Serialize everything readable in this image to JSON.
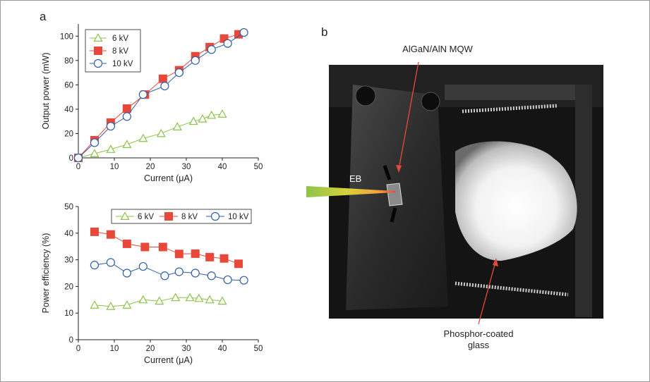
{
  "panel_a_label": "a",
  "panel_b_label": "b",
  "colors": {
    "kv6": "#8cc34a",
    "kv8": "#e8483a",
    "kv10": "#2f5ea6"
  },
  "chart_data": [
    {
      "type": "line",
      "xlabel": "Current (μA)",
      "ylabel": "Output power (mW)",
      "xlim": [
        0,
        50
      ],
      "ylim": [
        0,
        110
      ],
      "xticks": [
        "0",
        "10",
        "20",
        "30",
        "40",
        "50"
      ],
      "yticks": [
        "0",
        "20",
        "40",
        "60",
        "80",
        "100"
      ],
      "legend": "top-left, boxed",
      "series": [
        {
          "name": "6 kV",
          "marker": "triangle-open",
          "x": [
            0,
            4.5,
            9,
            13.5,
            18,
            23,
            27.5,
            32,
            34.5,
            37,
            40
          ],
          "y": [
            0,
            3.5,
            7,
            11,
            16,
            20,
            25.5,
            30,
            32,
            35,
            36
          ]
        },
        {
          "name": "8 kV",
          "marker": "square-filled",
          "x": [
            0,
            4.5,
            9,
            13.5,
            18.5,
            23.5,
            28,
            32.5,
            36.5,
            40.5,
            44.5
          ],
          "y": [
            0,
            14.5,
            29,
            40.5,
            52,
            65,
            72,
            83.5,
            91,
            98,
            101.5
          ]
        },
        {
          "name": "10 kV",
          "marker": "circle-open",
          "x": [
            0,
            4.5,
            9,
            13.5,
            18,
            24,
            28,
            32.5,
            37,
            41.5,
            46
          ],
          "y": [
            0,
            12.5,
            26,
            34,
            52,
            59,
            70,
            80,
            89,
            94,
            103
          ]
        }
      ]
    },
    {
      "type": "line",
      "xlabel": "Current (μA)",
      "ylabel": "Power efficiency (%)",
      "xlim": [
        0,
        50
      ],
      "ylim": [
        0,
        50
      ],
      "xticks": [
        "0",
        "10",
        "20",
        "30",
        "40",
        "50"
      ],
      "yticks": [
        "0",
        "10",
        "20",
        "30",
        "40",
        "50"
      ],
      "legend": "top, horizontal, boxed",
      "series": [
        {
          "name": "6 kV",
          "marker": "triangle-open",
          "x": [
            4.5,
            9,
            13.5,
            18,
            22.5,
            27,
            31,
            33.5,
            36.5,
            40
          ],
          "y": [
            13,
            12.5,
            13,
            15,
            14.5,
            15.8,
            15.8,
            15.5,
            15,
            14.5
          ]
        },
        {
          "name": "8 kV",
          "marker": "square-filled",
          "x": [
            4.5,
            9,
            13.5,
            18.5,
            23.5,
            28,
            32.5,
            36.5,
            40.5,
            44.5
          ],
          "y": [
            40.5,
            39.5,
            36,
            34.8,
            34.8,
            32.2,
            32.3,
            31,
            30.5,
            28.5
          ]
        },
        {
          "name": "10 kV",
          "marker": "circle-open",
          "x": [
            4.5,
            9,
            13.5,
            18,
            24,
            28,
            32.5,
            37,
            41.5,
            46
          ],
          "y": [
            28,
            29,
            25,
            27.5,
            24,
            25.5,
            25,
            24,
            22.5,
            22.3
          ]
        }
      ]
    }
  ],
  "photo": {
    "label_mqw": "AlGaN/AlN MQW",
    "label_eb": "EB",
    "label_phosphor_line1": "Phosphor-coated",
    "label_phosphor_line2": "glass"
  }
}
